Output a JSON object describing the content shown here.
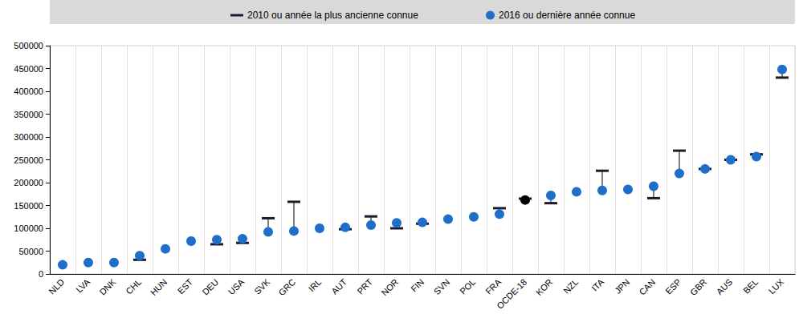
{
  "chart_data": {
    "type": "dumbbell",
    "categories": [
      "NLD",
      "LVA",
      "DNK",
      "CHL",
      "HUN",
      "EST",
      "DEU",
      "USA",
      "SVK",
      "GRC",
      "IRL",
      "AUT",
      "PRT",
      "NOR",
      "FIN",
      "SVN",
      "POL",
      "FRA",
      "OCDE-18",
      "KOR",
      "NZL",
      "ITA",
      "JPN",
      "CAN",
      "ESP",
      "GBR",
      "AUS",
      "BEL",
      "LUX"
    ],
    "series": [
      {
        "name": "2010 ou année la plus ancienne connue",
        "color": "#1b1b2f",
        "marker": "dash",
        "values": [
          null,
          null,
          null,
          31000,
          null,
          null,
          65000,
          68000,
          122000,
          158000,
          null,
          98000,
          126000,
          100000,
          110000,
          null,
          null,
          144000,
          165000,
          155000,
          null,
          226000,
          null,
          166000,
          270000,
          230000,
          250000,
          262000,
          430000
        ]
      },
      {
        "name": "2016 ou dernière année connue",
        "color": "#1f6fc8",
        "marker": "circle",
        "values": [
          20000,
          25000,
          25000,
          40000,
          55000,
          72000,
          75000,
          77000,
          92000,
          94000,
          100000,
          102000,
          107000,
          112000,
          113000,
          120000,
          125000,
          131000,
          162000,
          172000,
          180000,
          183000,
          185000,
          192000,
          220000,
          230000,
          250000,
          257000,
          448000
        ],
        "colors": [
          "#1f6fc8",
          "#1f6fc8",
          "#1f6fc8",
          "#1f6fc8",
          "#1f6fc8",
          "#1f6fc8",
          "#1f6fc8",
          "#1f6fc8",
          "#1f6fc8",
          "#1f6fc8",
          "#1f6fc8",
          "#1f6fc8",
          "#1f6fc8",
          "#1f6fc8",
          "#1f6fc8",
          "#1f6fc8",
          "#1f6fc8",
          "#1f6fc8",
          "#000000",
          "#1f6fc8",
          "#1f6fc8",
          "#1f6fc8",
          "#1f6fc8",
          "#1f6fc8",
          "#1f6fc8",
          "#1f6fc8",
          "#1f6fc8",
          "#1f6fc8",
          "#1f6fc8"
        ]
      }
    ],
    "ylim": [
      0,
      500000
    ],
    "yticks": [
      0,
      50000,
      100000,
      150000,
      200000,
      250000,
      300000,
      350000,
      400000,
      450000,
      500000
    ],
    "grid": true,
    "legend": "top"
  }
}
